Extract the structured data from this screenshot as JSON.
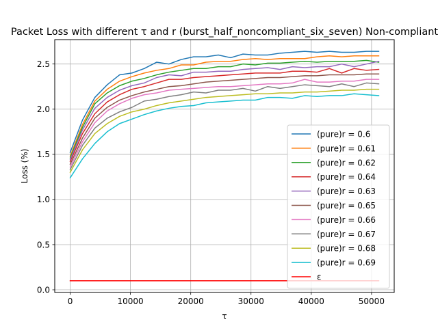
{
  "chart_data": {
    "type": "line",
    "title": "Packet Loss with different τ and r (burst_half_noncompliant_six_seven) Non-compliant",
    "xlabel": "τ",
    "ylabel": "Loss (%)",
    "xlim": [
      -2560,
      53760
    ],
    "ylim": [
      -0.03,
      2.77
    ],
    "xticks": [
      0,
      10000,
      20000,
      30000,
      40000,
      50000
    ],
    "xtick_labels": [
      "0",
      "10000",
      "20000",
      "30000",
      "40000",
      "50000"
    ],
    "yticks": [
      0.0,
      0.5,
      1.0,
      1.5,
      2.0,
      2.5
    ],
    "ytick_labels": [
      "0.0",
      "0.5",
      "1.0",
      "1.5",
      "2.0",
      "2.5"
    ],
    "grid": true,
    "legend_position": "lower right",
    "x": [
      0,
      2048,
      4096,
      6144,
      8192,
      10240,
      12288,
      14336,
      16384,
      18432,
      20480,
      22528,
      24576,
      26624,
      28672,
      30720,
      32768,
      34816,
      36864,
      38912,
      40960,
      43008,
      45056,
      47104,
      49152,
      51200
    ],
    "series": [
      {
        "name": "(pure)r = 0.6",
        "color": "#1f77b4",
        "values": [
          1.52,
          1.88,
          2.13,
          2.27,
          2.38,
          2.4,
          2.45,
          2.52,
          2.5,
          2.55,
          2.58,
          2.58,
          2.6,
          2.57,
          2.61,
          2.6,
          2.6,
          2.62,
          2.63,
          2.64,
          2.63,
          2.64,
          2.63,
          2.63,
          2.64,
          2.64
        ]
      },
      {
        "name": "(pure)r = 0.61",
        "color": "#ff7f0e",
        "values": [
          1.48,
          1.83,
          2.09,
          2.22,
          2.31,
          2.36,
          2.4,
          2.43,
          2.45,
          2.49,
          2.49,
          2.52,
          2.53,
          2.53,
          2.55,
          2.56,
          2.55,
          2.56,
          2.56,
          2.56,
          2.58,
          2.59,
          2.58,
          2.59,
          2.59,
          2.59
        ]
      },
      {
        "name": "(pure)r = 0.62",
        "color": "#2ca02c",
        "values": [
          1.46,
          1.8,
          2.06,
          2.18,
          2.26,
          2.31,
          2.34,
          2.38,
          2.41,
          2.43,
          2.45,
          2.45,
          2.47,
          2.47,
          2.5,
          2.49,
          2.51,
          2.51,
          2.52,
          2.53,
          2.52,
          2.53,
          2.53,
          2.53,
          2.54,
          2.52
        ]
      },
      {
        "name": "(pure)r = 0.64",
        "color": "#d62728",
        "values": [
          1.42,
          1.73,
          1.95,
          2.08,
          2.16,
          2.22,
          2.25,
          2.29,
          2.33,
          2.33,
          2.35,
          2.36,
          2.37,
          2.38,
          2.39,
          2.4,
          2.4,
          2.4,
          2.42,
          2.42,
          2.41,
          2.45,
          2.4,
          2.45,
          2.43,
          2.44
        ]
      },
      {
        "name": "(pure)r = 0.63",
        "color": "#9467bd",
        "values": [
          1.44,
          1.77,
          2.01,
          2.13,
          2.21,
          2.26,
          2.29,
          2.35,
          2.38,
          2.37,
          2.41,
          2.41,
          2.42,
          2.42,
          2.44,
          2.45,
          2.46,
          2.44,
          2.47,
          2.46,
          2.47,
          2.47,
          2.5,
          2.47,
          2.5,
          2.53
        ]
      },
      {
        "name": "(pure)r = 0.65",
        "color": "#8c564b",
        "values": [
          1.39,
          1.68,
          1.9,
          2.02,
          2.1,
          2.15,
          2.19,
          2.22,
          2.25,
          2.26,
          2.28,
          2.3,
          2.31,
          2.32,
          2.33,
          2.34,
          2.35,
          2.35,
          2.36,
          2.37,
          2.37,
          2.38,
          2.38,
          2.38,
          2.39,
          2.39
        ]
      },
      {
        "name": "(pure)r = 0.66",
        "color": "#e377c2",
        "values": [
          1.36,
          1.64,
          1.85,
          1.98,
          2.06,
          2.12,
          2.16,
          2.18,
          2.21,
          2.22,
          2.23,
          2.24,
          2.25,
          2.25,
          2.26,
          2.27,
          2.28,
          2.28,
          2.29,
          2.33,
          2.3,
          2.3,
          2.31,
          2.31,
          2.33,
          2.33
        ]
      },
      {
        "name": "(pure)r = 0.67",
        "color": "#7f7f7f",
        "values": [
          1.33,
          1.6,
          1.79,
          1.9,
          1.97,
          2.02,
          2.09,
          2.11,
          2.14,
          2.16,
          2.19,
          2.18,
          2.21,
          2.21,
          2.23,
          2.2,
          2.25,
          2.23,
          2.25,
          2.27,
          2.26,
          2.25,
          2.28,
          2.25,
          2.29,
          2.28
        ]
      },
      {
        "name": "(pure)r = 0.68",
        "color": "#bcbd22",
        "values": [
          1.3,
          1.55,
          1.73,
          1.84,
          1.92,
          1.97,
          2.0,
          2.04,
          2.07,
          2.09,
          2.11,
          2.13,
          2.14,
          2.15,
          2.16,
          2.17,
          2.17,
          2.18,
          2.18,
          2.19,
          2.19,
          2.2,
          2.21,
          2.21,
          2.22,
          2.22
        ]
      },
      {
        "name": "(pure)r = 0.69",
        "color": "#17becf",
        "values": [
          1.24,
          1.45,
          1.62,
          1.75,
          1.84,
          1.89,
          1.94,
          1.98,
          2.01,
          2.03,
          2.04,
          2.07,
          2.08,
          2.09,
          2.1,
          2.1,
          2.13,
          2.13,
          2.12,
          2.15,
          2.14,
          2.15,
          2.15,
          2.17,
          2.16,
          2.15
        ]
      },
      {
        "name": "ε",
        "color": "#ff0000",
        "values": [
          0.1,
          0.1,
          0.1,
          0.1,
          0.1,
          0.1,
          0.1,
          0.1,
          0.1,
          0.1,
          0.1,
          0.1,
          0.1,
          0.1,
          0.1,
          0.1,
          0.1,
          0.1,
          0.1,
          0.1,
          0.1,
          0.1,
          0.1,
          0.1,
          0.1,
          0.1
        ]
      }
    ]
  }
}
